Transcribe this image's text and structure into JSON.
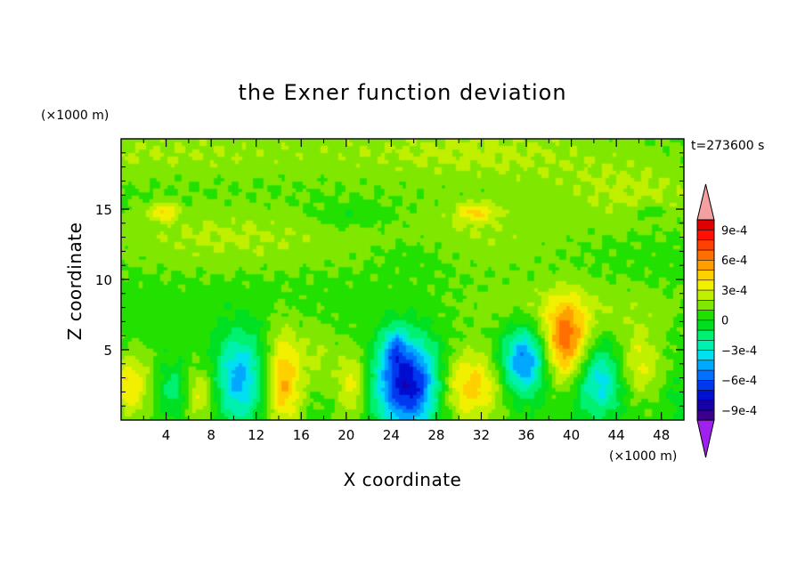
{
  "chart_data": {
    "type": "heatmap",
    "title": "the Exner function deviation",
    "xlabel": "X coordinate",
    "ylabel": "Z coordinate",
    "x_unit": "(×1000 m)",
    "y_unit": "(×1000 m)",
    "time_label": "t=273600 s",
    "xlim": [
      0,
      50
    ],
    "ylim": [
      0,
      20
    ],
    "x_ticks": [
      4,
      8,
      12,
      16,
      20,
      24,
      28,
      32,
      36,
      40,
      44,
      48
    ],
    "y_ticks": [
      5,
      10,
      15
    ],
    "colorbar": {
      "levels": [
        -0.0011,
        -0.001,
        -0.0009,
        -0.0008,
        -0.0007,
        -0.0006,
        -0.0005,
        -0.0004,
        -0.0003,
        -0.0002,
        -0.0001,
        0,
        0.0001,
        0.0002,
        0.0003,
        0.0004,
        0.0005,
        0.0006,
        0.0007,
        0.0008,
        0.0009,
        0.001,
        0.0011
      ],
      "colors": [
        "#a020f0",
        "#3a008c",
        "#1800a8",
        "#0010d0",
        "#0038f0",
        "#0070ff",
        "#00a8ff",
        "#00e0f0",
        "#00f0b0",
        "#00f070",
        "#00e020",
        "#20e000",
        "#80e800",
        "#c0f000",
        "#f0f000",
        "#ffd000",
        "#ffa000",
        "#ff7000",
        "#ff4000",
        "#ff1000",
        "#e00000",
        "#f4a0a0"
      ],
      "tick_values": [
        0.0009,
        0.0006,
        0.0003,
        0,
        -0.0003,
        -0.0006,
        -0.0009
      ],
      "tick_labels": [
        "9e-4",
        "6e-4",
        "3e-4",
        "0",
        "−3e-4",
        "−6e-4",
        "−9e-4"
      ]
    },
    "field": {
      "background": 5e-05,
      "features": [
        {
          "x": 2,
          "z": 19,
          "rx": 18,
          "rz": 2,
          "value": 0.00015
        },
        {
          "x": 32,
          "z": 19,
          "rx": 14,
          "rz": 2.5,
          "value": 0.00016
        },
        {
          "x": 46,
          "z": 16,
          "rx": 8,
          "rz": 2.5,
          "value": 0.00015
        },
        {
          "x": 9,
          "z": 13,
          "rx": 12,
          "rz": 2.5,
          "value": 0.00016
        },
        {
          "x": 30,
          "z": 13,
          "rx": 10,
          "rz": 2.5,
          "value": 0.00014
        },
        {
          "x": 40,
          "z": 8,
          "rx": 10,
          "rz": 2,
          "value": 0.00015
        },
        {
          "x": 21,
          "z": 14.5,
          "rx": 4,
          "rz": 0.9,
          "value": -0.00012
        },
        {
          "x": 26,
          "z": 12,
          "rx": 4,
          "rz": 1.5,
          "value": -0.0001
        },
        {
          "x": 3.8,
          "z": 14.8,
          "rx": 1.2,
          "rz": 0.6,
          "value": 0.0003
        },
        {
          "x": 31.5,
          "z": 14.8,
          "rx": 1.8,
          "rz": 0.7,
          "value": 0.00028
        },
        {
          "x": 47,
          "z": 14.8,
          "rx": 1.2,
          "rz": 0.5,
          "value": -0.00015
        },
        {
          "x": 0.8,
          "z": 2.5,
          "rx": 1.8,
          "rz": 2.2,
          "value": 0.00035
        },
        {
          "x": 4.5,
          "z": 2.2,
          "rx": 1.3,
          "rz": 1.8,
          "value": -0.0002
        },
        {
          "x": 7,
          "z": 1.8,
          "rx": 1.2,
          "rz": 2,
          "value": 0.00025
        },
        {
          "x": 10.5,
          "z": 3,
          "rx": 2,
          "rz": 3.2,
          "value": -0.0005
        },
        {
          "x": 14.5,
          "z": 2.8,
          "rx": 1.5,
          "rz": 3.5,
          "value": 0.00045
        },
        {
          "x": 17.5,
          "z": 4.5,
          "rx": 1.8,
          "rz": 2.5,
          "value": 0.00015
        },
        {
          "x": 20.5,
          "z": 2.5,
          "rx": 1.3,
          "rz": 2.5,
          "value": 0.0003
        },
        {
          "x": 25.5,
          "z": 2.5,
          "rx": 2.8,
          "rz": 3.2,
          "value": -0.00085
        },
        {
          "x": 24.3,
          "z": 5.2,
          "rx": 1,
          "rz": 1.5,
          "value": -0.0003
        },
        {
          "x": 31,
          "z": 2.4,
          "rx": 2.8,
          "rz": 2.6,
          "value": 0.00042
        },
        {
          "x": 35.8,
          "z": 4.2,
          "rx": 2,
          "rz": 2.4,
          "value": -0.0006
        },
        {
          "x": 39.5,
          "z": 5.5,
          "rx": 2,
          "rz": 2.8,
          "value": 0.0006
        },
        {
          "x": 42.5,
          "z": 2.8,
          "rx": 2.2,
          "rz": 2.6,
          "value": -0.00042
        },
        {
          "x": 46,
          "z": 4,
          "rx": 2,
          "rz": 2.5,
          "value": 0.00028
        },
        {
          "x": 49.5,
          "z": 1.5,
          "rx": 1.2,
          "rz": 1.5,
          "value": -0.0001
        }
      ]
    }
  }
}
